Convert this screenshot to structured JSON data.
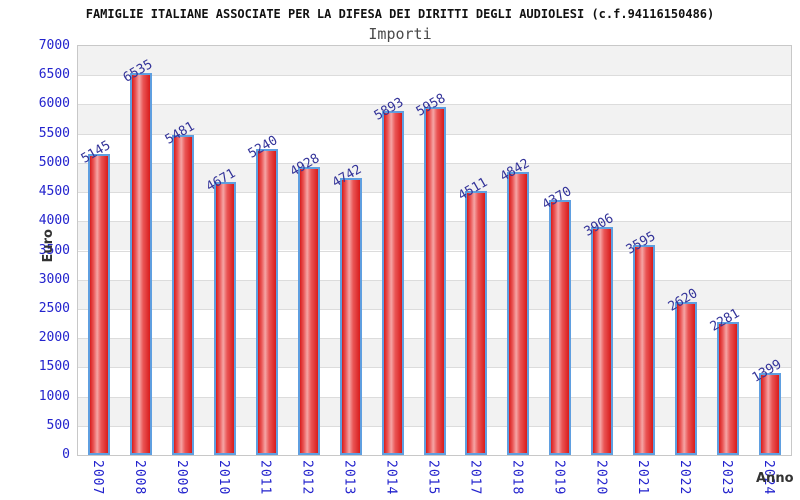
{
  "chart_data": {
    "type": "bar",
    "title": "FAMIGLIE ITALIANE ASSOCIATE PER LA DIFESA DEI DIRITTI DEGLI AUDIOLESI (c.f.94116150486)",
    "subtitle": "Importi",
    "xlabel": "Anno",
    "ylabel": "Euro",
    "categories": [
      "2007",
      "2008",
      "2009",
      "2010",
      "2011",
      "2012",
      "2013",
      "2014",
      "2015",
      "2017",
      "2018",
      "2019",
      "2020",
      "2021",
      "2022",
      "2023",
      "2024"
    ],
    "values": [
      5145,
      6535,
      5481,
      4671,
      5240,
      4928,
      4742,
      5893,
      5958,
      4511,
      4842,
      4370,
      3906,
      3595,
      2620,
      2281,
      1399
    ],
    "ylim": [
      0,
      7000
    ],
    "ytick_step": 500,
    "grid": true,
    "legend_position": "none",
    "colors": {
      "bar_fill_dark": "#d81c1c",
      "bar_fill_light": "#f5a5a5",
      "bar_border": "#5f9fe0",
      "tick_label": "#2323cd",
      "value_label": "#333399",
      "axis_title": "#333333",
      "band_gray": "#f2f2f2",
      "band_white": "#ffffff",
      "plot_border": "#c8c8c8"
    }
  }
}
